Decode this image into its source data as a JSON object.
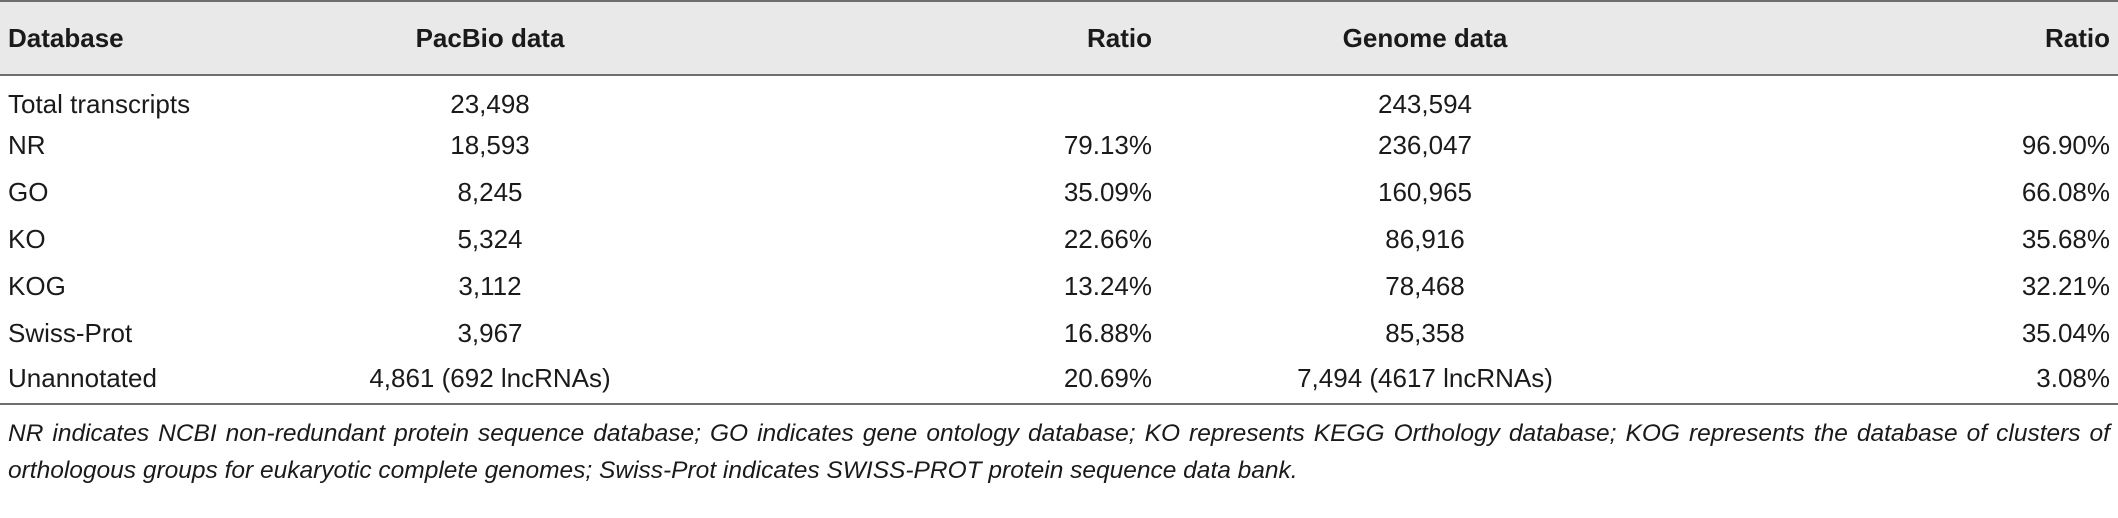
{
  "table": {
    "headers": [
      "Database",
      "PacBio data",
      "Ratio",
      "Genome data",
      "Ratio"
    ],
    "rows": [
      [
        "Total transcripts",
        "23,498",
        "",
        "243,594",
        ""
      ],
      [
        "NR",
        "18,593",
        "79.13%",
        "236,047",
        "96.90%"
      ],
      [
        "GO",
        "8,245",
        "35.09%",
        "160,965",
        "66.08%"
      ],
      [
        "KO",
        "5,324",
        "22.66%",
        "86,916",
        "35.68%"
      ],
      [
        "KOG",
        "3,112",
        "13.24%",
        "78,468",
        "32.21%"
      ],
      [
        "Swiss-Prot",
        "3,967",
        "16.88%",
        "85,358",
        "35.04%"
      ],
      [
        "Unannotated",
        "4,861 (692 lncRNAs)",
        "20.69%",
        "7,494 (4617 lncRNAs)",
        "3.08%"
      ]
    ]
  },
  "footnote": "NR indicates NCBI non-redundant protein sequence database; GO indicates gene ontology database; KO represents KEGG Orthology database; KOG represents the database of clusters of orthologous groups for eukaryotic complete genomes; Swiss-Prot indicates SWISS-PROT protein sequence data bank."
}
